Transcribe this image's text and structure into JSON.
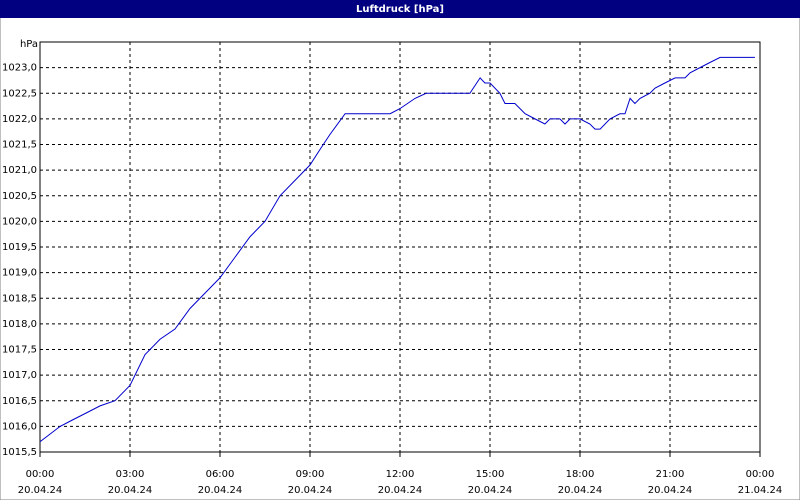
{
  "chart_data": {
    "type": "line",
    "title": "Luftdruck [hPa]",
    "y_unit": "hPa",
    "x": [
      0,
      0.67,
      1,
      1.67,
      2,
      2.5,
      3,
      3.5,
      4,
      4.5,
      5,
      5.5,
      6,
      6.5,
      7,
      7.5,
      8,
      8.5,
      9,
      9.33,
      9.67,
      10.17,
      11.67,
      12,
      12.5,
      12.87,
      14.33,
      14.67,
      14.83,
      15,
      15.33,
      15.5,
      15.83,
      16.17,
      16.5,
      16.83,
      17,
      17.33,
      17.5,
      17.67,
      18,
      18.33,
      18.5,
      18.67,
      19,
      19.33,
      19.5,
      19.67,
      19.83,
      20,
      20.33,
      20.5,
      20.83,
      21.17,
      21.5,
      21.67,
      22,
      22.33,
      22.67,
      23.83
    ],
    "series": [
      {
        "name": "Luftdruck",
        "color": "#0000cc",
        "values": [
          1015.7,
          1016.0,
          1016.1,
          1016.3,
          1016.4,
          1016.5,
          1016.8,
          1017.4,
          1017.7,
          1017.9,
          1018.3,
          1018.6,
          1018.9,
          1019.3,
          1019.7,
          1020.0,
          1020.5,
          1020.8,
          1021.1,
          1021.4,
          1021.7,
          1022.1,
          1022.1,
          1022.2,
          1022.4,
          1022.5,
          1022.5,
          1022.8,
          1022.7,
          1022.7,
          1022.5,
          1022.3,
          1022.3,
          1022.1,
          1022.0,
          1021.9,
          1022.0,
          1022.0,
          1021.9,
          1022.0,
          1022.0,
          1021.9,
          1021.8,
          1021.8,
          1022.0,
          1022.1,
          1022.1,
          1022.4,
          1022.3,
          1022.4,
          1022.5,
          1022.6,
          1022.7,
          1022.8,
          1022.8,
          1022.9,
          1023.0,
          1023.1,
          1023.2,
          1023.2
        ]
      }
    ],
    "xlim": [
      0,
      24
    ],
    "xticks": [
      {
        "value": 0,
        "label": "00:00"
      },
      {
        "value": 3,
        "label": "03:00"
      },
      {
        "value": 6,
        "label": "06:00"
      },
      {
        "value": 9,
        "label": "09:00"
      },
      {
        "value": 12,
        "label": "12:00"
      },
      {
        "value": 15,
        "label": "15:00"
      },
      {
        "value": 18,
        "label": "18:00"
      },
      {
        "value": 21,
        "label": "21:00"
      },
      {
        "value": 24,
        "label": "00:00"
      }
    ],
    "xtick_dates": [
      "20.04.24",
      "20.04.24",
      "20.04.24",
      "20.04.24",
      "20.04.24",
      "20.04.24",
      "20.04.24",
      "20.04.24",
      "21.04.24"
    ],
    "ylim": [
      1015.5,
      1023.5
    ],
    "yticks": [
      {
        "value": 1015.5,
        "label": "1015,5"
      },
      {
        "value": 1016.0,
        "label": "1016,0"
      },
      {
        "value": 1016.5,
        "label": "1016,5"
      },
      {
        "value": 1017.0,
        "label": "1017,0"
      },
      {
        "value": 1017.5,
        "label": "1017,5"
      },
      {
        "value": 1018.0,
        "label": "1018,0"
      },
      {
        "value": 1018.5,
        "label": "1018,5"
      },
      {
        "value": 1019.0,
        "label": "1019,0"
      },
      {
        "value": 1019.5,
        "label": "1019,5"
      },
      {
        "value": 1020.0,
        "label": "1020,0"
      },
      {
        "value": 1020.5,
        "label": "1020,5"
      },
      {
        "value": 1021.0,
        "label": "1021,0"
      },
      {
        "value": 1021.5,
        "label": "1021,5"
      },
      {
        "value": 1022.0,
        "label": "1022,0"
      },
      {
        "value": 1022.5,
        "label": "1022,5"
      },
      {
        "value": 1023.0,
        "label": "1023,0"
      }
    ],
    "grid": true
  }
}
